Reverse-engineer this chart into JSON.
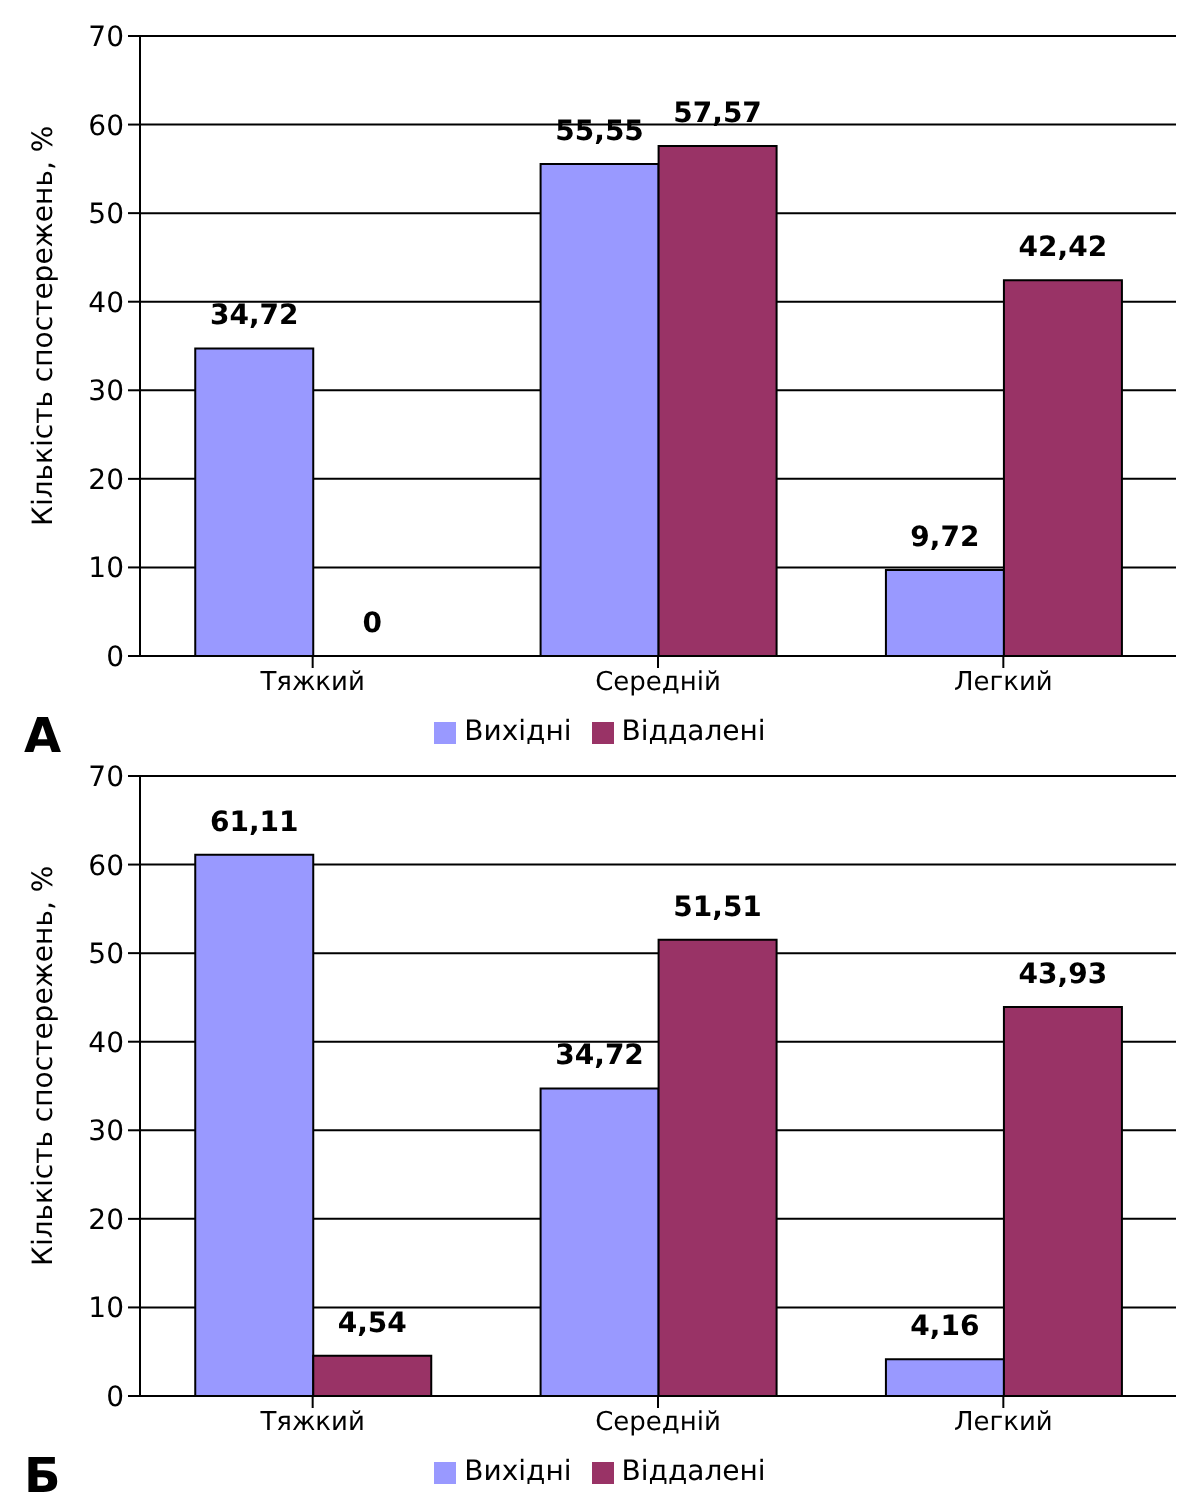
{
  "chart_data": [
    {
      "type": "bar",
      "ylabel": "Кількість спостережень, %",
      "categories": [
        "Тяжкий",
        "Середній",
        "Легкий"
      ],
      "series": [
        {
          "name": "Вихідні",
          "color": "#9999ff",
          "values": [
            34.72,
            55.55,
            9.72
          ],
          "value_labels": [
            "34,72",
            "55,55",
            "9,72"
          ]
        },
        {
          "name": "Віддалені",
          "color": "#993366",
          "values": [
            0,
            57.57,
            42.42
          ],
          "value_labels": [
            "0",
            "57,57",
            "42,42"
          ]
        }
      ],
      "ylim": [
        0,
        70
      ],
      "yticks": [
        0,
        10,
        20,
        30,
        40,
        50,
        60,
        70
      ],
      "grid": "y",
      "legend": "bottom",
      "annotations": [
        "А"
      ]
    },
    {
      "type": "bar",
      "ylabel": "Кількість спостережень, %",
      "categories": [
        "Тяжкий",
        "Середній",
        "Легкий"
      ],
      "series": [
        {
          "name": "Вихідні",
          "color": "#9999ff",
          "values": [
            61.11,
            34.72,
            4.16
          ],
          "value_labels": [
            "61,11",
            "34,72",
            "4,16"
          ]
        },
        {
          "name": "Віддалені",
          "color": "#993366",
          "values": [
            4.54,
            51.51,
            43.93
          ],
          "value_labels": [
            "4,54",
            "51,51",
            "43,93"
          ]
        }
      ],
      "ylim": [
        0,
        70
      ],
      "yticks": [
        0,
        10,
        20,
        30,
        40,
        50,
        60,
        70
      ],
      "grid": "y",
      "legend": "bottom",
      "annotations": [
        "Б"
      ]
    }
  ]
}
